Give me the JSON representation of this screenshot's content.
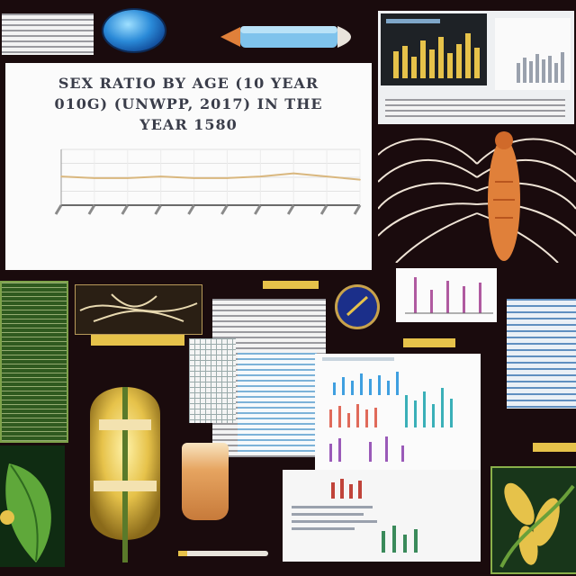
{
  "main_chart": {
    "title_line1": "SEX RATIO BY AGE (10 YEAR",
    "title_line2": "010G) (UNWPP, 2017) IN THE",
    "title_line3": "YEAR 1580",
    "chart_data": {
      "type": "line",
      "categories": [
        "1",
        "2",
        "3",
        "4",
        "5",
        "6",
        "7",
        "8",
        "9",
        "10"
      ],
      "series": [
        {
          "values": [
            108,
            107,
            107,
            108,
            107,
            107,
            108,
            110,
            108,
            106
          ]
        }
      ],
      "ylim": [
        90,
        125
      ],
      "grid": true,
      "line_color": "#d9b77e"
    }
  },
  "colors": {
    "background": "#1a0b0d",
    "accent_orange": "#e0803a",
    "accent_gold": "#e6c24a",
    "accent_blue": "#3f9fe0"
  }
}
